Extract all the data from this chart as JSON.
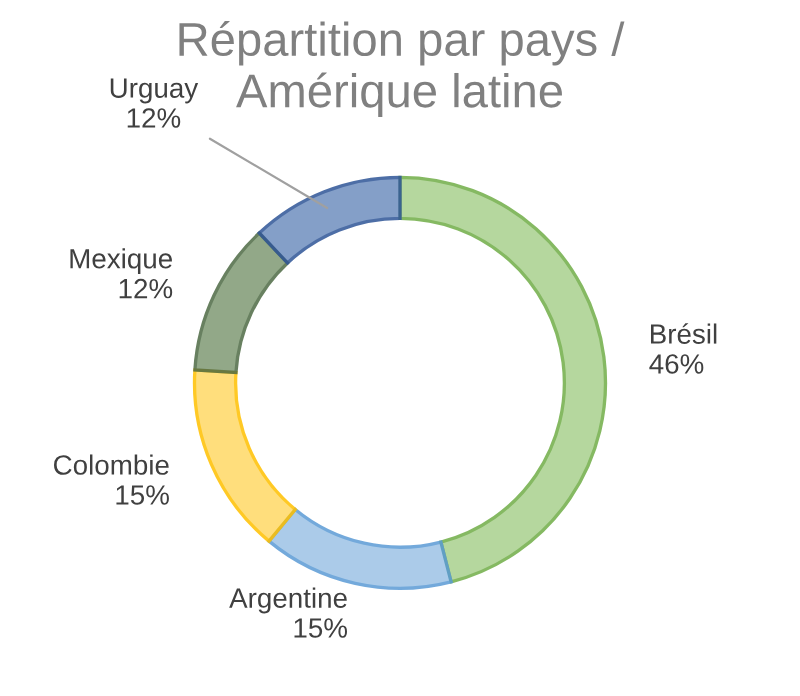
{
  "chart_data": {
    "type": "donut",
    "title": "Répartition par pays /\nAmérique latine",
    "categories": [
      "Brésil",
      "Argentine",
      "Colombie",
      "Mexique",
      "Urguay"
    ],
    "values": [
      46,
      15,
      15,
      12,
      12
    ],
    "value_labels": [
      "46%",
      "15%",
      "15%",
      "12%",
      "12%"
    ],
    "colors": [
      "#a9d18e",
      "#9dc3e6",
      "#ffd966",
      "#7f9a74",
      "#6f8fbf"
    ],
    "legend": false
  }
}
